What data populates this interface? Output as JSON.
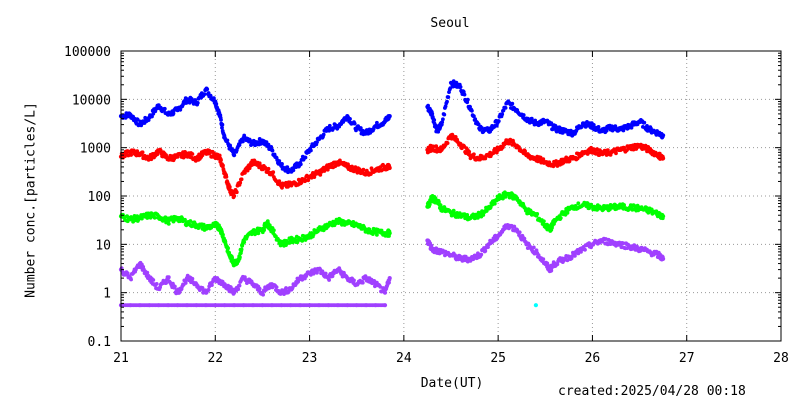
{
  "title": "Seoul",
  "footer": "created:2025/04/28 00:18",
  "chart_data": {
    "type": "scatter",
    "title": "Seoul",
    "xlabel": "Date(UT)",
    "ylabel": "Number conc.[particles/L]",
    "xlim": [
      21,
      28
    ],
    "ylim": [
      0.1,
      100000
    ],
    "yscale": "log",
    "grid": true,
    "x_ticks": [
      "21",
      "22",
      "23",
      "24",
      "25",
      "26",
      "27",
      "28"
    ],
    "y_ticks": [
      "0.1",
      "1",
      "10",
      "100",
      "1000",
      "10000",
      "100000"
    ],
    "gap": [
      23.9,
      24.25
    ],
    "series": [
      {
        "color": "#0000ff",
        "points": [
          [
            21.0,
            4500
          ],
          [
            21.1,
            4800
          ],
          [
            21.2,
            3000
          ],
          [
            21.3,
            4200
          ],
          [
            21.4,
            7500
          ],
          [
            21.5,
            4800
          ],
          [
            21.6,
            6000
          ],
          [
            21.7,
            10000
          ],
          [
            21.8,
            8500
          ],
          [
            21.9,
            16000
          ],
          [
            22.0,
            9000
          ],
          [
            22.05,
            4500
          ],
          [
            22.1,
            1600
          ],
          [
            22.2,
            700
          ],
          [
            22.3,
            1600
          ],
          [
            22.4,
            1200
          ],
          [
            22.5,
            1400
          ],
          [
            22.6,
            900
          ],
          [
            22.7,
            420
          ],
          [
            22.8,
            330
          ],
          [
            22.9,
            480
          ],
          [
            23.0,
            900
          ],
          [
            23.1,
            1500
          ],
          [
            23.2,
            2500
          ],
          [
            23.3,
            2800
          ],
          [
            23.4,
            4500
          ],
          [
            23.5,
            2500
          ],
          [
            23.6,
            2000
          ],
          [
            23.7,
            2800
          ],
          [
            23.8,
            3500
          ],
          [
            23.85,
            4500
          ],
          [
            24.25,
            7000
          ],
          [
            24.3,
            5000
          ],
          [
            24.35,
            2200
          ],
          [
            24.4,
            3000
          ],
          [
            24.5,
            22000
          ],
          [
            24.6,
            18000
          ],
          [
            24.7,
            7000
          ],
          [
            24.8,
            2500
          ],
          [
            24.9,
            2200
          ],
          [
            25.0,
            3500
          ],
          [
            25.1,
            8500
          ],
          [
            25.2,
            6000
          ],
          [
            25.3,
            4000
          ],
          [
            25.4,
            3200
          ],
          [
            25.5,
            3500
          ],
          [
            25.6,
            2500
          ],
          [
            25.7,
            2200
          ],
          [
            25.8,
            2000
          ],
          [
            25.9,
            3200
          ],
          [
            26.0,
            2800
          ],
          [
            26.1,
            2200
          ],
          [
            26.2,
            2600
          ],
          [
            26.3,
            2400
          ],
          [
            26.4,
            2800
          ],
          [
            26.5,
            3500
          ],
          [
            26.6,
            2400
          ],
          [
            26.7,
            2000
          ],
          [
            26.75,
            1800
          ]
        ]
      },
      {
        "color": "#ff0000",
        "points": [
          [
            21.0,
            650
          ],
          [
            21.1,
            800
          ],
          [
            21.2,
            750
          ],
          [
            21.3,
            600
          ],
          [
            21.4,
            850
          ],
          [
            21.5,
            600
          ],
          [
            21.6,
            650
          ],
          [
            21.7,
            750
          ],
          [
            21.8,
            600
          ],
          [
            21.9,
            800
          ],
          [
            22.0,
            700
          ],
          [
            22.05,
            600
          ],
          [
            22.1,
            300
          ],
          [
            22.15,
            140
          ],
          [
            22.2,
            100
          ],
          [
            22.3,
            300
          ],
          [
            22.4,
            500
          ],
          [
            22.5,
            400
          ],
          [
            22.6,
            300
          ],
          [
            22.7,
            160
          ],
          [
            22.8,
            170
          ],
          [
            22.9,
            200
          ],
          [
            23.0,
            250
          ],
          [
            23.1,
            300
          ],
          [
            23.2,
            400
          ],
          [
            23.3,
            500
          ],
          [
            23.4,
            400
          ],
          [
            23.5,
            350
          ],
          [
            23.6,
            300
          ],
          [
            23.7,
            350
          ],
          [
            23.8,
            400
          ],
          [
            23.85,
            380
          ],
          [
            24.25,
            900
          ],
          [
            24.3,
            1000
          ],
          [
            24.4,
            900
          ],
          [
            24.5,
            1800
          ],
          [
            24.6,
            1200
          ],
          [
            24.7,
            700
          ],
          [
            24.8,
            600
          ],
          [
            24.9,
            700
          ],
          [
            25.0,
            900
          ],
          [
            25.1,
            1400
          ],
          [
            25.2,
            1100
          ],
          [
            25.3,
            700
          ],
          [
            25.4,
            600
          ],
          [
            25.5,
            500
          ],
          [
            25.6,
            450
          ],
          [
            25.7,
            550
          ],
          [
            25.8,
            600
          ],
          [
            25.9,
            800
          ],
          [
            26.0,
            900
          ],
          [
            26.1,
            750
          ],
          [
            26.2,
            800
          ],
          [
            26.3,
            900
          ],
          [
            26.4,
            1000
          ],
          [
            26.5,
            1100
          ],
          [
            26.6,
            900
          ],
          [
            26.7,
            700
          ],
          [
            26.75,
            600
          ]
        ]
      },
      {
        "color": "#00ff00",
        "points": [
          [
            21.0,
            38
          ],
          [
            21.1,
            33
          ],
          [
            21.2,
            35
          ],
          [
            21.3,
            40
          ],
          [
            21.4,
            38
          ],
          [
            21.5,
            30
          ],
          [
            21.6,
            35
          ],
          [
            21.7,
            28
          ],
          [
            21.8,
            25
          ],
          [
            21.9,
            22
          ],
          [
            22.0,
            25
          ],
          [
            22.05,
            22
          ],
          [
            22.1,
            12
          ],
          [
            22.15,
            6
          ],
          [
            22.2,
            4
          ],
          [
            22.25,
            5
          ],
          [
            22.3,
            12
          ],
          [
            22.4,
            18
          ],
          [
            22.5,
            20
          ],
          [
            22.55,
            28
          ],
          [
            22.6,
            20
          ],
          [
            22.7,
            10
          ],
          [
            22.8,
            12
          ],
          [
            22.9,
            13
          ],
          [
            23.0,
            15
          ],
          [
            23.1,
            20
          ],
          [
            23.2,
            25
          ],
          [
            23.3,
            30
          ],
          [
            23.4,
            27
          ],
          [
            23.5,
            25
          ],
          [
            23.6,
            20
          ],
          [
            23.7,
            18
          ],
          [
            23.8,
            17
          ],
          [
            23.85,
            17
          ],
          [
            24.25,
            60
          ],
          [
            24.3,
            90
          ],
          [
            24.35,
            80
          ],
          [
            24.4,
            55
          ],
          [
            24.5,
            45
          ],
          [
            24.6,
            40
          ],
          [
            24.7,
            35
          ],
          [
            24.8,
            40
          ],
          [
            24.9,
            55
          ],
          [
            25.0,
            90
          ],
          [
            25.1,
            110
          ],
          [
            25.2,
            90
          ],
          [
            25.3,
            50
          ],
          [
            25.4,
            40
          ],
          [
            25.5,
            25
          ],
          [
            25.55,
            20
          ],
          [
            25.6,
            30
          ],
          [
            25.7,
            45
          ],
          [
            25.8,
            60
          ],
          [
            25.9,
            65
          ],
          [
            26.0,
            60
          ],
          [
            26.1,
            55
          ],
          [
            26.2,
            58
          ],
          [
            26.3,
            60
          ],
          [
            26.4,
            58
          ],
          [
            26.5,
            55
          ],
          [
            26.6,
            50
          ],
          [
            26.7,
            42
          ],
          [
            26.75,
            38
          ]
        ]
      },
      {
        "color": "#a040ff",
        "points": [
          [
            21.0,
            3
          ],
          [
            21.1,
            2
          ],
          [
            21.2,
            4
          ],
          [
            21.3,
            2
          ],
          [
            21.4,
            1.2
          ],
          [
            21.5,
            2
          ],
          [
            21.6,
            1
          ],
          [
            21.7,
            2
          ],
          [
            21.8,
            1.5
          ],
          [
            21.9,
            1
          ],
          [
            22.0,
            2
          ],
          [
            22.1,
            1.5
          ],
          [
            22.2,
            1
          ],
          [
            22.3,
            2
          ],
          [
            22.4,
            1.5
          ],
          [
            22.5,
            1
          ],
          [
            22.6,
            1.5
          ],
          [
            22.7,
            1
          ],
          [
            22.8,
            1.2
          ],
          [
            22.9,
            2
          ],
          [
            23.0,
            2.5
          ],
          [
            23.1,
            3
          ],
          [
            23.2,
            2
          ],
          [
            23.3,
            3
          ],
          [
            23.4,
            2
          ],
          [
            23.5,
            1.5
          ],
          [
            23.6,
            2
          ],
          [
            23.7,
            1.5
          ],
          [
            23.8,
            1
          ],
          [
            23.85,
            2
          ],
          [
            24.25,
            12
          ],
          [
            24.3,
            8
          ],
          [
            24.4,
            7
          ],
          [
            24.5,
            6
          ],
          [
            24.6,
            5
          ],
          [
            24.7,
            5
          ],
          [
            24.8,
            6
          ],
          [
            24.9,
            10
          ],
          [
            25.0,
            15
          ],
          [
            25.1,
            25
          ],
          [
            25.2,
            20
          ],
          [
            25.3,
            10
          ],
          [
            25.4,
            7
          ],
          [
            25.5,
            4
          ],
          [
            25.55,
            3
          ],
          [
            25.6,
            4
          ],
          [
            25.7,
            5
          ],
          [
            25.8,
            6
          ],
          [
            25.9,
            8
          ],
          [
            26.0,
            10
          ],
          [
            26.1,
            12
          ],
          [
            26.2,
            11
          ],
          [
            26.3,
            10
          ],
          [
            26.4,
            9
          ],
          [
            26.5,
            8
          ],
          [
            26.6,
            7
          ],
          [
            26.7,
            6
          ],
          [
            26.75,
            5
          ]
        ]
      },
      {
        "color": "#a040ff",
        "points": [
          [
            21.0,
            0.55
          ],
          [
            21.1,
            0.55
          ],
          [
            21.2,
            0.55
          ],
          [
            21.3,
            0.55
          ],
          [
            21.4,
            0.55
          ],
          [
            21.5,
            0.55
          ],
          [
            21.6,
            0.55
          ],
          [
            21.7,
            0.55
          ],
          [
            21.8,
            0.55
          ],
          [
            21.9,
            0.55
          ],
          [
            22.0,
            0.55
          ],
          [
            22.1,
            0.55
          ],
          [
            22.2,
            0.55
          ],
          [
            22.3,
            0.55
          ],
          [
            22.4,
            0.55
          ],
          [
            22.5,
            0.55
          ],
          [
            22.6,
            0.55
          ],
          [
            22.7,
            0.55
          ],
          [
            22.8,
            0.55
          ],
          [
            22.9,
            0.55
          ],
          [
            23.0,
            0.55
          ],
          [
            23.1,
            0.55
          ],
          [
            23.2,
            0.55
          ],
          [
            23.3,
            0.55
          ],
          [
            23.4,
            0.55
          ],
          [
            23.5,
            0.55
          ],
          [
            23.6,
            0.55
          ],
          [
            23.7,
            0.55
          ],
          [
            23.8,
            0.55
          ]
        ]
      },
      {
        "color": "#00ffff",
        "points": [
          [
            25.4,
            0.55
          ]
        ]
      }
    ]
  }
}
